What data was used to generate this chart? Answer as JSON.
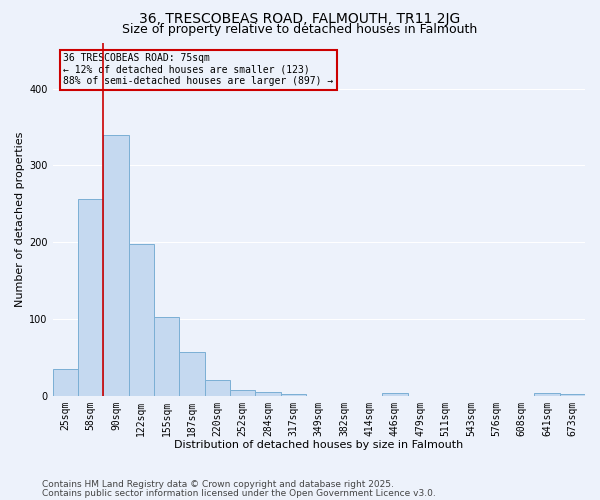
{
  "title": "36, TRESCOBEAS ROAD, FALMOUTH, TR11 2JG",
  "subtitle": "Size of property relative to detached houses in Falmouth",
  "xlabel": "Distribution of detached houses by size in Falmouth",
  "ylabel": "Number of detached properties",
  "categories": [
    "25sqm",
    "58sqm",
    "90sqm",
    "122sqm",
    "155sqm",
    "187sqm",
    "220sqm",
    "252sqm",
    "284sqm",
    "317sqm",
    "349sqm",
    "382sqm",
    "414sqm",
    "446sqm",
    "479sqm",
    "511sqm",
    "543sqm",
    "576sqm",
    "608sqm",
    "641sqm",
    "673sqm"
  ],
  "values": [
    35,
    256,
    340,
    198,
    102,
    57,
    20,
    8,
    5,
    2,
    0,
    0,
    0,
    3,
    0,
    0,
    0,
    0,
    0,
    3,
    2
  ],
  "bar_color": "#c5d9f0",
  "bar_edge_color": "#7bafd4",
  "vline_x": 1.5,
  "vline_color": "#cc0000",
  "annotation_text": "36 TRESCOBEAS ROAD: 75sqm\n← 12% of detached houses are smaller (123)\n88% of semi-detached houses are larger (897) →",
  "annotation_box_color": "#cc0000",
  "annotation_text_color": "#000000",
  "footnote1": "Contains HM Land Registry data © Crown copyright and database right 2025.",
  "footnote2": "Contains public sector information licensed under the Open Government Licence v3.0.",
  "ylim": [
    0,
    460
  ],
  "background_color": "#edf2fb",
  "grid_color": "#ffffff",
  "title_fontsize": 10,
  "subtitle_fontsize": 9,
  "axis_label_fontsize": 8,
  "tick_fontsize": 7,
  "annotation_fontsize": 7,
  "footnote_fontsize": 6.5
}
